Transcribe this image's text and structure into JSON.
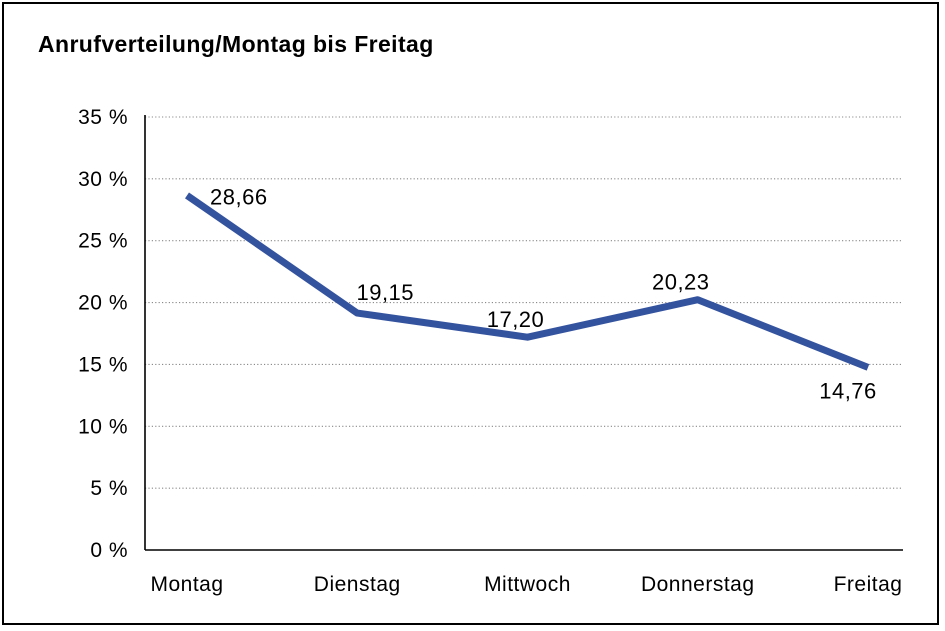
{
  "chart_data": {
    "type": "line",
    "title": "Anrufverteilung/Montag bis Freitag",
    "categories": [
      "Montag",
      "Dienstag",
      "Mittwoch",
      "Donnerstag",
      "Freitag"
    ],
    "values": [
      28.66,
      19.15,
      17.2,
      20.23,
      14.76
    ],
    "value_labels": [
      "28,66",
      "19,15",
      "17,20",
      "20,23",
      "14,76"
    ],
    "y_tick_labels": [
      "0 %",
      "5 %",
      "10 %",
      "15 %",
      "20 %",
      "25 %",
      "30 %",
      "35 %"
    ],
    "ylim": [
      0,
      35
    ],
    "y_tick_step": 5,
    "xlabel": "",
    "ylabel": "",
    "legend": "none",
    "grid": "horizontal-dotted",
    "line_color": "#34539f",
    "grid_color": "#8a8a8a",
    "axis_color": "#000000",
    "label_color": "#000000",
    "background_color": "#ffffff"
  }
}
